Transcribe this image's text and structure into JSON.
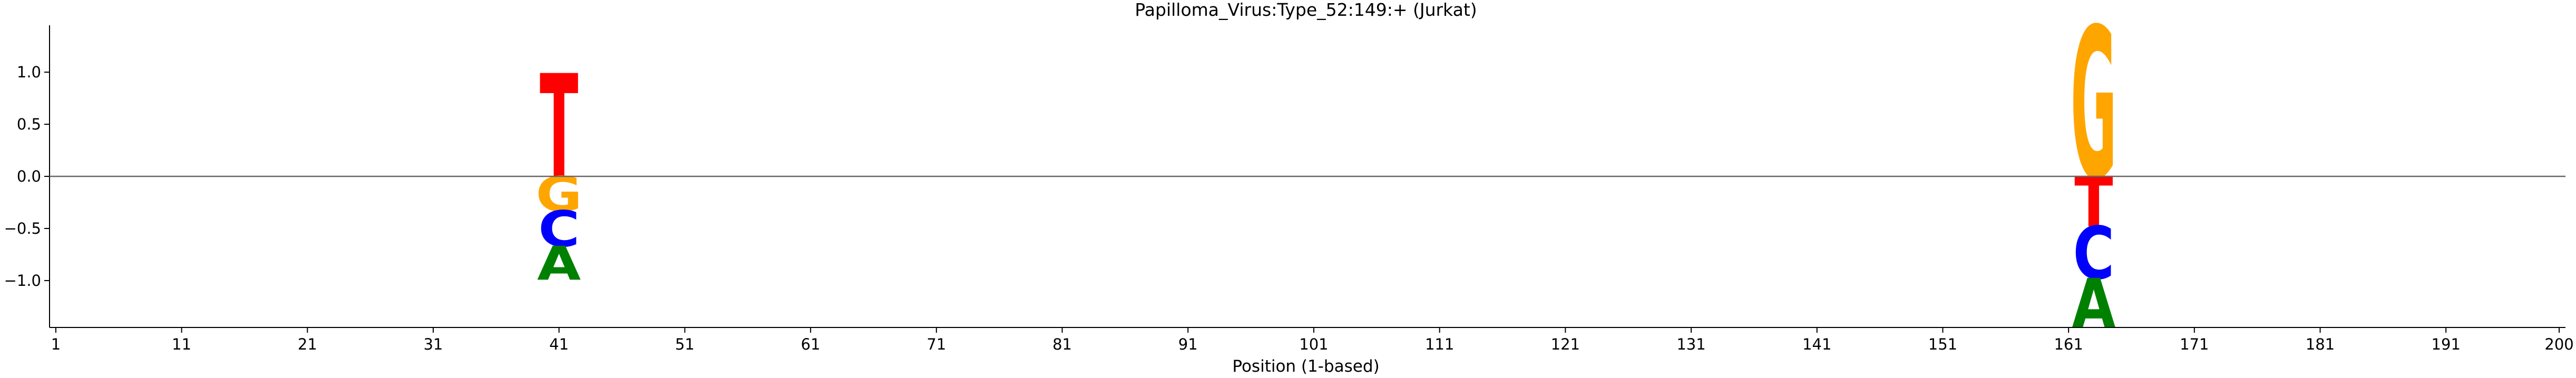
{
  "chart_data": {
    "type": "sequence-logo",
    "title": "Papilloma_Virus:Type_52:149:+  (Jurkat)",
    "xlabel": "Position (1-based)",
    "ylabel": "",
    "xlim": [
      0.5,
      200.5
    ],
    "ylim": [
      -1.45,
      1.45
    ],
    "xticks": [
      1,
      11,
      21,
      31,
      41,
      51,
      61,
      71,
      81,
      91,
      101,
      111,
      121,
      131,
      141,
      151,
      161,
      171,
      181,
      191,
      200
    ],
    "xtick_labels": [
      "1",
      "11",
      "21",
      "31",
      "41",
      "51",
      "61",
      "71",
      "81",
      "91",
      "101",
      "111",
      "121",
      "131",
      "141",
      "151",
      "161",
      "171",
      "181",
      "191",
      "200"
    ],
    "yticks": [
      1.0,
      0.5,
      0.0,
      -0.5,
      -1.0
    ],
    "ytick_labels": [
      "1.0",
      "0.5",
      "0.0",
      "−0.5",
      "−1.0"
    ],
    "zero_line": true,
    "grid": false,
    "colors": {
      "A": "#008000",
      "C": "#0000ff",
      "G": "#ffa500",
      "T": "#ff0000"
    },
    "positions": [
      {
        "position": 41,
        "letters": [
          {
            "base": "T",
            "y0": 0.0,
            "y1": 0.98
          },
          {
            "base": "G",
            "y0": -0.33,
            "y1": 0.0
          },
          {
            "base": "C",
            "y0": -0.67,
            "y1": -0.33
          },
          {
            "base": "A",
            "y0": -0.99,
            "y1": -0.67
          }
        ]
      },
      {
        "position": 163,
        "letters": [
          {
            "base": "G",
            "y0": 0.0,
            "y1": 1.43
          },
          {
            "base": "T",
            "y0": -0.48,
            "y1": 0.0
          },
          {
            "base": "C",
            "y0": -0.98,
            "y1": -0.48
          },
          {
            "base": "A",
            "y0": -1.45,
            "y1": -0.98
          }
        ]
      }
    ]
  }
}
